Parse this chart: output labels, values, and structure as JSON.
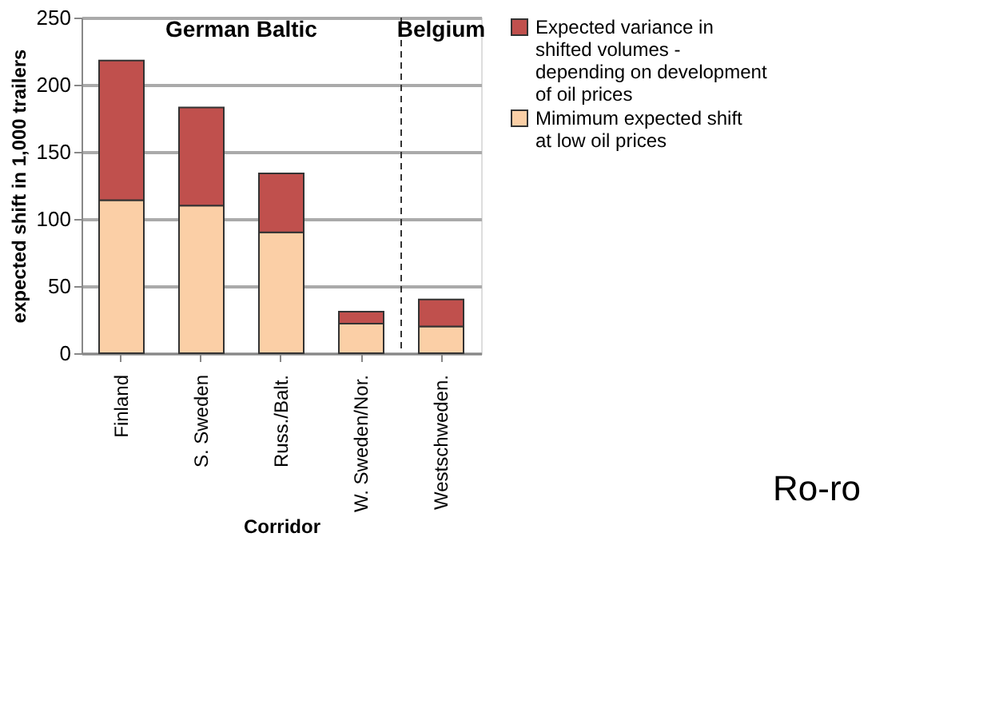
{
  "chart_data": {
    "type": "bar",
    "stacked": true,
    "xlabel": "Corridor",
    "ylabel": "expected shift in 1,000 trailers",
    "categories": [
      "Finland",
      "S. Sweden",
      "Russ./Balt.",
      "W. Sweden/Nor.",
      "Westschweden."
    ],
    "series": [
      {
        "name": "Mimimum expected shift at low oil prices",
        "color": "#fbcfa6",
        "values": [
          114,
          110,
          90,
          22,
          20
        ]
      },
      {
        "name": "Expected variance in shifted volumes - depending on development of oil prices",
        "color": "#c0504d",
        "values": [
          104,
          73,
          44,
          9,
          20
        ]
      }
    ],
    "ylim": [
      0,
      250
    ],
    "yticks": [
      0,
      50,
      100,
      150,
      200,
      250
    ],
    "grid": "y",
    "legend": "right",
    "ref_lines": [
      {
        "axis": "x",
        "value": "Westschweden.",
        "line_style": "dashed",
        "color": "#333333"
      }
    ],
    "annotations": [
      "German Baltic",
      "Belgium",
      "Ro-ro"
    ]
  }
}
